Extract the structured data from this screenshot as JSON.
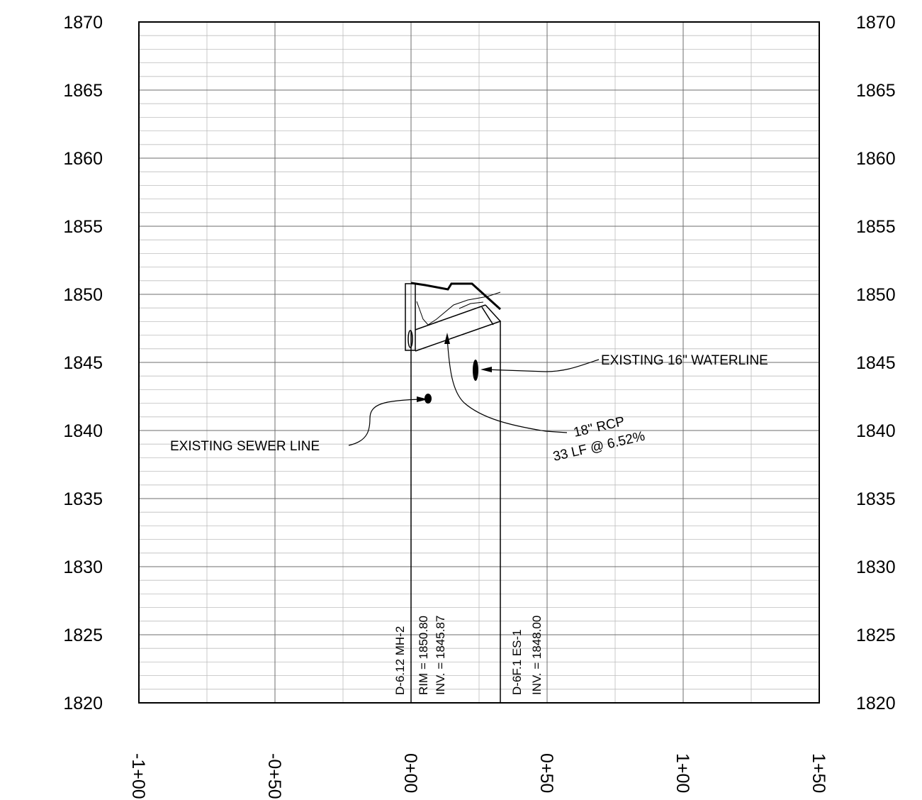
{
  "elevations": [
    "1870",
    "1865",
    "1860",
    "1855",
    "1850",
    "1845",
    "1840",
    "1835",
    "1830",
    "1825",
    "1820"
  ],
  "stations": [
    "-1+00",
    "-0+50",
    "0+00",
    "0+50",
    "1+00",
    "1+50"
  ],
  "annotations": {
    "waterline": "EXISTING 16\" WATERLINE",
    "sewer": "EXISTING SEWER LINE",
    "pipe_size": "18\" RCP",
    "pipe_length_slope": "33 LF @ 6.52%"
  },
  "structures": {
    "mh": {
      "name": "D-6.12 MH-2",
      "rim": "RIM = 1850.80",
      "inv": "INV. = 1845.87"
    },
    "es": {
      "name": "D-6F.1   ES-1",
      "inv": "INV. = 1848.00"
    }
  }
}
